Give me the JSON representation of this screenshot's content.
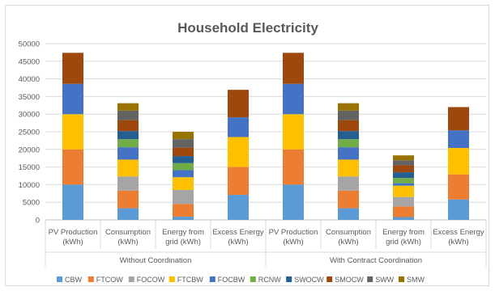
{
  "chart_data": {
    "type": "bar",
    "stacked": true,
    "title": "Household Electricity",
    "ylim": [
      0,
      50000
    ],
    "yticks": [
      0,
      5000,
      10000,
      15000,
      20000,
      25000,
      30000,
      35000,
      40000,
      45000,
      50000
    ],
    "gridlines": true,
    "legend_position": "bottom",
    "groups": [
      {
        "label": "Without Coordination",
        "categories": [
          [
            "PV Production",
            "(kWh)"
          ],
          [
            "Consumption",
            "(kWh)"
          ],
          [
            "Energy from",
            "grid (kWh)"
          ],
          [
            "Excess Energy",
            "(kWh)"
          ]
        ]
      },
      {
        "label": "With Contract Coordination",
        "categories": [
          [
            "PV Production",
            "(kWh)"
          ],
          [
            "Consumption",
            "(kWh)"
          ],
          [
            "Energy from",
            "grid (kWh)"
          ],
          [
            "Excess Energy",
            "(kWh)"
          ]
        ]
      }
    ],
    "series": [
      {
        "name": "CBW",
        "color": "#5b9bd5",
        "values": [
          10000,
          3300,
          900,
          7100,
          10000,
          3300,
          800,
          5800
        ]
      },
      {
        "name": "FTCOW",
        "color": "#ed7d31",
        "values": [
          10000,
          5000,
          3600,
          7900,
          10000,
          5000,
          3000,
          7100
        ]
      },
      {
        "name": "FOCOW",
        "color": "#a5a5a5",
        "values": [
          0,
          4000,
          4000,
          0,
          0,
          4000,
          2700,
          0
        ]
      },
      {
        "name": "FTCBW",
        "color": "#ffc000",
        "values": [
          10000,
          4800,
          3600,
          8500,
          10000,
          4800,
          3200,
          7500
        ]
      },
      {
        "name": "FOCBW",
        "color": "#4472c4",
        "values": [
          8600,
          3500,
          2000,
          5600,
          8600,
          3500,
          700,
          5000
        ]
      },
      {
        "name": "RCNW",
        "color": "#70ad47",
        "values": [
          0,
          2300,
          2000,
          0,
          0,
          2300,
          1500,
          0
        ]
      },
      {
        "name": "SWOCW",
        "color": "#255e91",
        "values": [
          0,
          2300,
          2000,
          0,
          0,
          2300,
          1600,
          0
        ]
      },
      {
        "name": "SMOCW",
        "color": "#9e480e",
        "values": [
          8800,
          3100,
          2400,
          7800,
          8800,
          3100,
          2000,
          6600
        ]
      },
      {
        "name": "SWW",
        "color": "#636363",
        "values": [
          0,
          2700,
          2400,
          0,
          0,
          2700,
          1400,
          0
        ]
      },
      {
        "name": "SMW",
        "color": "#997300",
        "values": [
          0,
          2100,
          2100,
          0,
          0,
          2100,
          1400,
          0
        ]
      }
    ]
  }
}
